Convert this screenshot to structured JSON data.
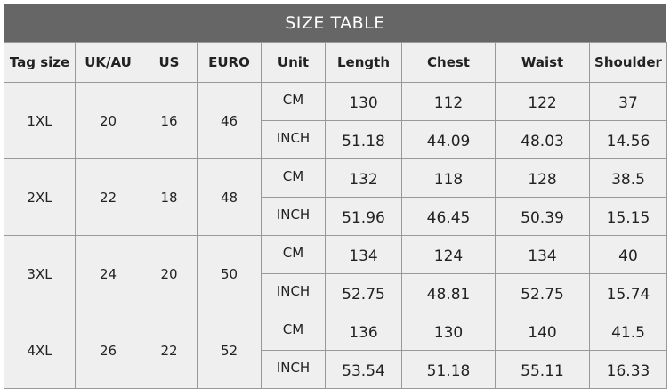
{
  "title": "SIZE TABLE",
  "headers": [
    "Tag size",
    "UK/AU",
    "US",
    "EURO",
    "Unit",
    "Length",
    "Chest",
    "Waist",
    "Shoulder"
  ],
  "rows": [
    {
      "tag": "1XL",
      "uk": "20",
      "us": "16",
      "euro": "46",
      "cm": {
        "unit": "CM",
        "length": "130",
        "chest": "112",
        "waist": "122",
        "shoulder": "37"
      },
      "inch": {
        "unit": "INCH",
        "length": "51.18",
        "chest": "44.09",
        "waist": "48.03",
        "shoulder": "14.56"
      }
    },
    {
      "tag": "2XL",
      "uk": "22",
      "us": "18",
      "euro": "48",
      "cm": {
        "unit": "CM",
        "length": "132",
        "chest": "118",
        "waist": "128",
        "shoulder": "38.5"
      },
      "inch": {
        "unit": "INCH",
        "length": "51.96",
        "chest": "46.45",
        "waist": "50.39",
        "shoulder": "15.15"
      }
    },
    {
      "tag": "3XL",
      "uk": "24",
      "us": "20",
      "euro": "50",
      "cm": {
        "unit": "CM",
        "length": "134",
        "chest": "124",
        "waist": "134",
        "shoulder": "40"
      },
      "inch": {
        "unit": "INCH",
        "length": "52.75",
        "chest": "48.81",
        "waist": "52.75",
        "shoulder": "15.74"
      }
    },
    {
      "tag": "4XL",
      "uk": "26",
      "us": "22",
      "euro": "52",
      "cm": {
        "unit": "CM",
        "length": "136",
        "chest": "130",
        "waist": "140",
        "shoulder": "41.5"
      },
      "inch": {
        "unit": "INCH",
        "length": "53.54",
        "chest": "51.18",
        "waist": "55.11",
        "shoulder": "16.33"
      }
    }
  ]
}
